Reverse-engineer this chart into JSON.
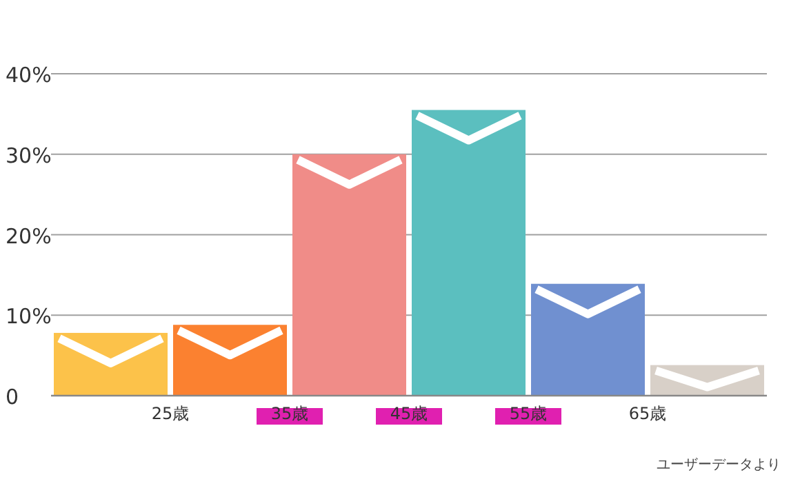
{
  "chart_data": {
    "type": "histogram",
    "bins": [
      15,
      25,
      35,
      45,
      55,
      65,
      75
    ],
    "values": [
      7.8,
      8.8,
      30,
      35.5,
      13.9,
      3.8
    ],
    "colors": [
      "#fcc24a",
      "#fb8130",
      "#f08c88",
      "#5bbfbf",
      "#7090d0",
      "#d8d0c8"
    ],
    "xlim": [
      15,
      75
    ],
    "xticks": [
      {
        "value": 25,
        "label": "25歳"
      },
      {
        "value": 35,
        "label": "35歳"
      },
      {
        "value": 45,
        "label": "45歳"
      },
      {
        "value": 55,
        "label": "55歳"
      },
      {
        "value": 65,
        "label": "65歳"
      }
    ],
    "ylim": [
      0,
      40
    ],
    "yticks": [
      0,
      {
        "value": 10,
        "label": "10%"
      },
      {
        "value": 20,
        "label": "20%"
      },
      {
        "value": 30,
        "label": "30%"
      },
      {
        "value": 40,
        "label": "40%"
      }
    ],
    "grid": "y",
    "annotations": [
      "ユーザーデータより"
    ]
  }
}
